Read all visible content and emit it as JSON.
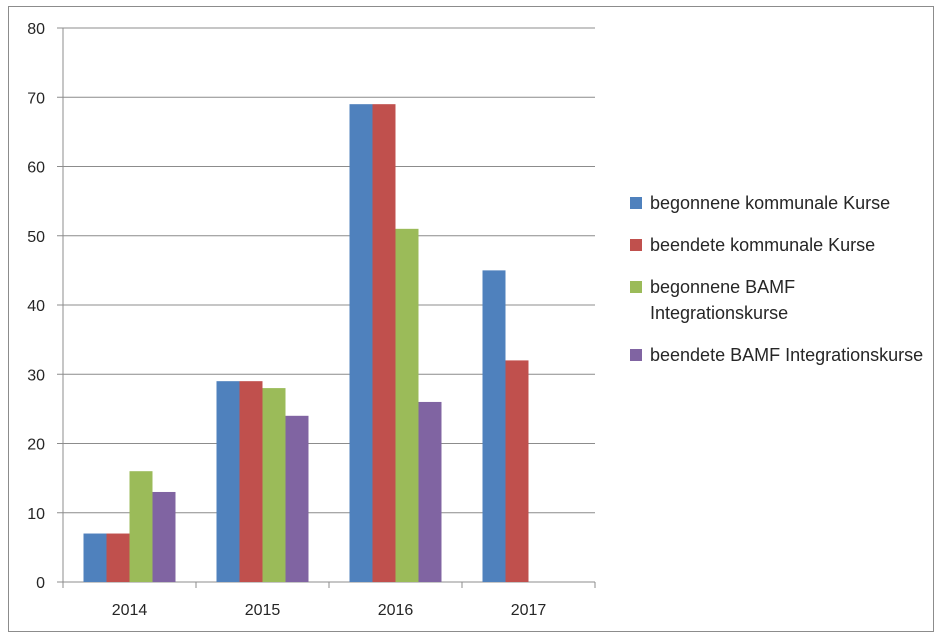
{
  "chart_data": {
    "type": "bar",
    "title": "",
    "xlabel": "",
    "ylabel": "",
    "categories": [
      "2014",
      "2015",
      "2016",
      "2017"
    ],
    "ylim": [
      0,
      80
    ],
    "yticks": [
      0,
      10,
      20,
      30,
      40,
      50,
      60,
      70,
      80
    ],
    "grid": true,
    "legend_position": "right",
    "series": [
      {
        "name": "begonnene kommunale Kurse",
        "color": "#4f81bd",
        "values": [
          7,
          29,
          69,
          45
        ]
      },
      {
        "name": "beendete kommunale Kurse",
        "color": "#c0504d",
        "values": [
          7,
          29,
          69,
          32
        ]
      },
      {
        "name": "begonnene BAMF Integrationskurse",
        "color": "#9bbb59",
        "values": [
          16,
          28,
          51,
          null
        ]
      },
      {
        "name": "beendete BAMF Integrationskurse",
        "color": "#8064a2",
        "values": [
          13,
          24,
          26,
          null
        ]
      }
    ]
  }
}
